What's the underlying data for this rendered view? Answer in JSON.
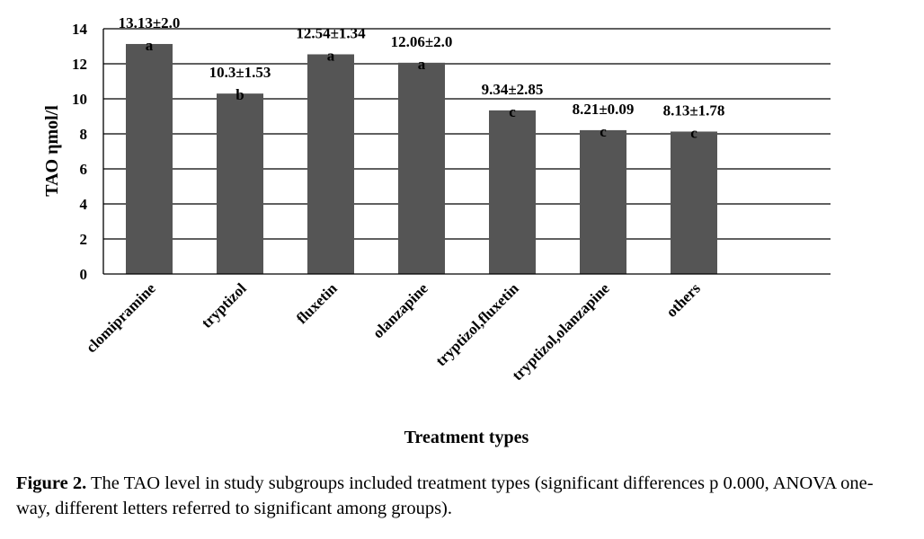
{
  "chart_data": {
    "type": "bar",
    "ylabel": "TAO ηmol/l",
    "xlabel": "Treatment types",
    "ylim": [
      0,
      14
    ],
    "yticks": [
      0,
      2,
      4,
      6,
      8,
      10,
      12,
      14
    ],
    "grid": true,
    "categories": [
      "clomipramine",
      "tryptizol",
      "fluxetin",
      "olanzapine",
      "tryptizol,fluxetin",
      "tryptizol,olanzapine",
      "others"
    ],
    "values": [
      13.13,
      10.3,
      12.54,
      12.06,
      9.34,
      8.21,
      8.13
    ],
    "data_labels": [
      "13.13±2.0",
      "10.3±1.53",
      "12.54±1.34",
      "12.06±2.0",
      "9.34±2.85",
      "8.21±0.09",
      "8.13±1.78"
    ],
    "group_letters": [
      "a",
      "b",
      "a",
      "a",
      "c",
      "c",
      "c"
    ],
    "bar_color": "#555555"
  },
  "caption": {
    "label": "Figure 2.",
    "text": " The TAO level in study subgroups included treatment types (significant differences p 0.000, ANOVA one-way, different letters referred to significant among groups)."
  }
}
